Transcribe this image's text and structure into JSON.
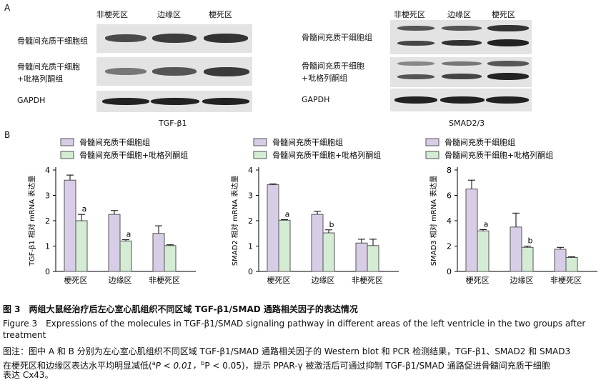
{
  "panel_a": {
    "letter": "A",
    "left": {
      "columns": [
        "非梗死区",
        "边缘区",
        "梗死区"
      ],
      "rows": [
        "骨髓间充质干细胞组",
        "骨髓间充质干细胞",
        "+吡格列酮组",
        "GAPDH"
      ],
      "title": "TGF-β1"
    },
    "right": {
      "columns": [
        "非梗死区",
        "边缘区",
        "梗死区"
      ],
      "rows": [
        "骨髓间充质干细胞组",
        "骨髓间充质干细胞",
        "+吡格列酮组",
        "GAPDH"
      ],
      "title": "SMAD2/3"
    }
  },
  "panel_b": {
    "letter": "B"
  },
  "colors": {
    "group1": "#d8cde6",
    "group2": "#d4ecd4",
    "stroke": "#555555"
  },
  "chart_data": [
    {
      "type": "bar",
      "categories": [
        "梗死区",
        "边缘区",
        "非梗死区"
      ],
      "ylabel": "TGF-β1 相对 mRNA 表达量",
      "ylim": [
        0,
        4
      ],
      "yticks": [
        "0",
        "1",
        "2",
        "3",
        "4"
      ],
      "legend": [
        "骨髓间充质干细胞组",
        "骨髓间充质干细胞+吡格列酮组"
      ],
      "series": [
        {
          "name": "骨髓间充质干细胞组",
          "values": [
            3.6,
            2.25,
            1.5
          ],
          "errors": [
            0.2,
            0.15,
            0.3
          ]
        },
        {
          "name": "骨髓间充质干细胞+吡格列酮组",
          "values": [
            2.0,
            1.2,
            1.02
          ],
          "errors": [
            0.25,
            0.05,
            0.03
          ]
        }
      ],
      "annotations": [
        "a",
        "a",
        ""
      ]
    },
    {
      "type": "bar",
      "categories": [
        "梗死区",
        "边缘区",
        "非梗死区"
      ],
      "ylabel": "SMAD2 相对 mRNA 表达量",
      "ylim": [
        0,
        4
      ],
      "yticks": [
        "0",
        "1",
        "2",
        "3",
        "4"
      ],
      "legend": [
        "骨髓间充质干细胞组",
        "骨髓间充质干细胞+吡格列酮组"
      ],
      "series": [
        {
          "name": "骨髓间充质干细胞组",
          "values": [
            3.42,
            2.25,
            1.12
          ],
          "errors": [
            0.03,
            0.12,
            0.15
          ]
        },
        {
          "name": "骨髓间充质干细胞+吡格列酮组",
          "values": [
            2.02,
            1.52,
            1.02
          ],
          "errors": [
            0.02,
            0.12,
            0.25
          ]
        }
      ],
      "annotations": [
        "a",
        "b",
        ""
      ]
    },
    {
      "type": "bar",
      "categories": [
        "梗死区",
        "边缘区",
        "非梗死区"
      ],
      "ylabel": "SMAD3 相对 mRNA 表达量",
      "ylim": [
        0,
        8
      ],
      "yticks": [
        "0",
        "2",
        "4",
        "6",
        "8"
      ],
      "legend": [
        "骨髓间充质干细胞组",
        "骨髓间充质干细胞+吡格列酮组"
      ],
      "series": [
        {
          "name": "骨髓间充质干细胞组",
          "values": [
            6.5,
            3.5,
            1.75
          ],
          "errors": [
            0.7,
            1.1,
            0.15
          ]
        },
        {
          "name": "骨髓间充质干细胞+吡格列酮组",
          "values": [
            3.2,
            1.9,
            1.1
          ],
          "errors": [
            0.1,
            0.1,
            0.05
          ]
        }
      ],
      "annotations": [
        "a",
        "b",
        ""
      ]
    }
  ],
  "caption": {
    "line1": "图 3　两组大鼠经治疗后左心室心肌组织不同区域 TGF-β1/SMAD 通路相关因子的表达情况",
    "line2": "Figure 3　Expressions of the molecules in TGF-β1/SMAD signaling pathway in different areas of the left ventricle in the two groups after",
    "line3": "treatment",
    "line4": "图注：图中 A 和 B 分别为左心室心肌组织不同区域 TGF-β1/SMAD 通路相关因子的 Western blot 和 PCR 检测结果，TGF-β1、SMAD2 和 SMAD3",
    "line5a": "在梗死区和边缘区表达水平均明显减低(",
    "sup_a": "a",
    "p1": "P < 0.01，",
    "sup_b": "b",
    "p2": "P < 0.05)，提示 PPAR-γ 被激活后可通过抑制 TGF-β1/SMAD 通路促进骨髓间充质干细胞",
    "line6": "表达 Cx43。"
  }
}
